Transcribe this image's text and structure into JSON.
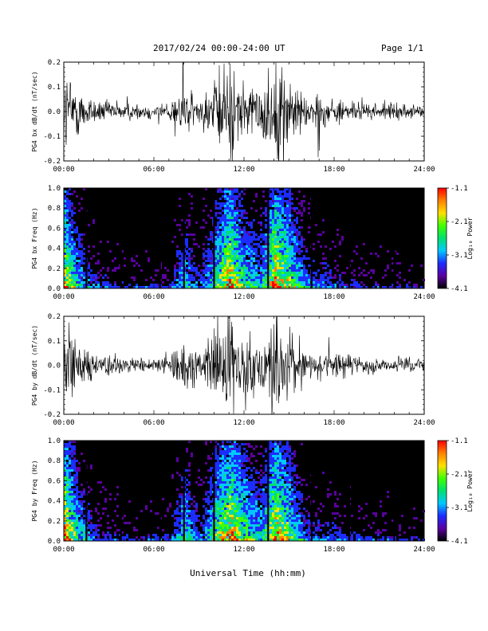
{
  "header": {
    "title": "2017/02/24  00:00-24:00 UT",
    "page": "Page 1/1"
  },
  "xaxis_title": "Universal Time (hh:mm)",
  "colors": {
    "background": "#ffffff",
    "trace": "#000000",
    "spectrogram_bg": "#000000",
    "colorbar": [
      "#000000",
      "#5a00a0",
      "#1c2cff",
      "#00c8ff",
      "#00e070",
      "#40ff00",
      "#ffe000",
      "#ff8000",
      "#ff0000"
    ]
  },
  "chart_data": [
    {
      "type": "line",
      "ylabel": "PG4 bx dB/dt (nT/sec)",
      "x_ticks": [
        "00:00",
        "06:00",
        "12:00",
        "18:00",
        "24:00"
      ],
      "xlim_hours": [
        0,
        24
      ],
      "ylim": [
        -0.2,
        0.2
      ],
      "y_ticks": [
        "0.2",
        "0.1",
        "0.0",
        "-0.1",
        "-0.2"
      ],
      "y_tick_values": [
        0.2,
        0.1,
        0.0,
        -0.1,
        -0.2
      ],
      "activity_hours": [
        0,
        1,
        2,
        3,
        4,
        5,
        6,
        7,
        8,
        9,
        10,
        11,
        12,
        13,
        14,
        15,
        16,
        17,
        18,
        19,
        20,
        21,
        22,
        23,
        24
      ],
      "activity_amplitude": [
        0.18,
        0.09,
        0.05,
        0.04,
        0.035,
        0.03,
        0.03,
        0.035,
        0.1,
        0.05,
        0.12,
        0.2,
        0.12,
        0.09,
        0.2,
        0.15,
        0.07,
        0.06,
        0.05,
        0.04,
        0.03,
        0.03,
        0.03,
        0.025,
        0.02
      ]
    },
    {
      "type": "heatmap",
      "ylabel": "PG4 bx Freq (Hz)",
      "x_ticks": [
        "00:00",
        "06:00",
        "12:00",
        "18:00",
        "24:00"
      ],
      "xlim_hours": [
        0,
        24
      ],
      "ylim": [
        0.0,
        1.0
      ],
      "y_ticks": [
        "1.0",
        "0.8",
        "0.6",
        "0.4",
        "0.2",
        "0.0"
      ],
      "y_tick_values": [
        1.0,
        0.8,
        0.6,
        0.4,
        0.2,
        0.0
      ],
      "colorbar_label": "Log₁₀ Power",
      "colorbar_ticks": [
        "-1.1",
        "-2.1",
        "-3.1",
        "-4.1"
      ],
      "colorbar_tick_values": [
        -1.1,
        -2.1,
        -3.1,
        -4.1
      ],
      "clim": [
        -4.1,
        -1.1
      ],
      "gap_hours": [
        1.5,
        3.8,
        6.4,
        8.0,
        10.0,
        13.6,
        16.5,
        19.0,
        22.0
      ],
      "activity_hours": [
        0,
        1,
        2,
        3,
        4,
        5,
        6,
        7,
        8,
        9,
        10,
        11,
        12,
        13,
        14,
        15,
        16,
        17,
        18,
        19,
        20,
        21,
        22,
        23,
        24
      ],
      "activity_amplitude": [
        0.18,
        0.09,
        0.05,
        0.04,
        0.035,
        0.03,
        0.03,
        0.035,
        0.1,
        0.05,
        0.12,
        0.2,
        0.12,
        0.09,
        0.2,
        0.15,
        0.07,
        0.06,
        0.05,
        0.04,
        0.03,
        0.03,
        0.03,
        0.025,
        0.02
      ]
    },
    {
      "type": "line",
      "ylabel": "PG4 by dB/dt (nT/sec)",
      "x_ticks": [
        "00:00",
        "06:00",
        "12:00",
        "18:00",
        "24:00"
      ],
      "xlim_hours": [
        0,
        24
      ],
      "ylim": [
        -0.2,
        0.2
      ],
      "y_ticks": [
        "0.2",
        "0.1",
        "0.0",
        "-0.1",
        "-0.2"
      ],
      "y_tick_values": [
        0.2,
        0.1,
        0.0,
        -0.1,
        -0.2
      ],
      "activity_hours": [
        0,
        1,
        2,
        3,
        4,
        5,
        6,
        7,
        8,
        9,
        10,
        11,
        12,
        13,
        14,
        15,
        16,
        17,
        18,
        19,
        20,
        21,
        22,
        23,
        24
      ],
      "activity_amplitude": [
        0.2,
        0.1,
        0.05,
        0.04,
        0.035,
        0.03,
        0.035,
        0.04,
        0.12,
        0.05,
        0.14,
        0.2,
        0.14,
        0.1,
        0.2,
        0.14,
        0.06,
        0.05,
        0.05,
        0.04,
        0.03,
        0.035,
        0.03,
        0.03,
        0.025
      ]
    },
    {
      "type": "heatmap",
      "ylabel": "PG4 by Freq (Hz)",
      "x_ticks": [
        "00:00",
        "06:00",
        "12:00",
        "18:00",
        "24:00"
      ],
      "xlim_hours": [
        0,
        24
      ],
      "ylim": [
        0.0,
        1.0
      ],
      "y_ticks": [
        "1.0",
        "0.8",
        "0.6",
        "0.4",
        "0.2",
        "0.0"
      ],
      "y_tick_values": [
        1.0,
        0.8,
        0.6,
        0.4,
        0.2,
        0.0
      ],
      "colorbar_label": "Log₁₀ Power",
      "colorbar_ticks": [
        "-1.1",
        "-2.1",
        "-3.1",
        "-4.1"
      ],
      "colorbar_tick_values": [
        -1.1,
        -2.1,
        -3.1,
        -4.1
      ],
      "clim": [
        -4.1,
        -1.1
      ],
      "gap_hours": [
        1.5,
        3.8,
        6.4,
        8.0,
        10.0,
        13.6,
        16.5,
        19.0,
        22.0
      ],
      "activity_hours": [
        0,
        1,
        2,
        3,
        4,
        5,
        6,
        7,
        8,
        9,
        10,
        11,
        12,
        13,
        14,
        15,
        16,
        17,
        18,
        19,
        20,
        21,
        22,
        23,
        24
      ],
      "activity_amplitude": [
        0.2,
        0.1,
        0.05,
        0.04,
        0.035,
        0.03,
        0.035,
        0.04,
        0.12,
        0.05,
        0.14,
        0.2,
        0.14,
        0.1,
        0.2,
        0.14,
        0.06,
        0.05,
        0.05,
        0.04,
        0.03,
        0.035,
        0.03,
        0.03,
        0.025
      ]
    }
  ]
}
